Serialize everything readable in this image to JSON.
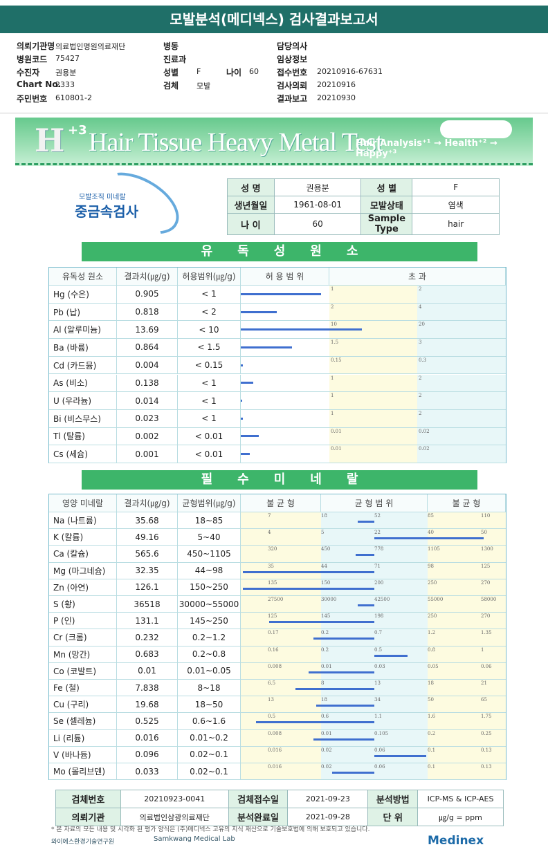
{
  "header": {
    "title": "모발분석(메디넥스) 검사결과보고서",
    "fields": [
      {
        "label": "의뢰기관명",
        "value": "의료법인명원의료재단"
      },
      {
        "label": "병원코드",
        "value": "75427"
      },
      {
        "label": "수진자",
        "value": "권용분"
      },
      {
        "label": "Chart No.",
        "value": "2333"
      },
      {
        "label": "주민번호",
        "value": "610801-2"
      },
      {
        "label": "병동",
        "value": ""
      },
      {
        "label": "진료과",
        "value": ""
      },
      {
        "label": "성별",
        "value": "F"
      },
      {
        "label": "나이",
        "value": "60"
      },
      {
        "label": "검체",
        "value": "모발"
      },
      {
        "label": "담당의사",
        "value": ""
      },
      {
        "label": "임상정보",
        "value": ""
      },
      {
        "label": "접수번호",
        "value": "20210916-67631"
      },
      {
        "label": "검사의뢰",
        "value": "20210916"
      },
      {
        "label": "결과보고",
        "value": "20210930"
      }
    ]
  },
  "banner": {
    "h": "H",
    "sup": "+3",
    "title": "Hair Tissue Heavy Metal Test",
    "subtitle": "Hair Analysis⁺¹ → Health⁺² → Happy⁺³"
  },
  "logo": {
    "small": "모발조직 미네랄",
    "big": "중금속검사"
  },
  "patient": {
    "rows": [
      [
        {
          "k": "성      명"
        },
        {
          "v": "권용분"
        },
        {
          "k": "성      별"
        },
        {
          "v": "F"
        }
      ],
      [
        {
          "k": "생년월일"
        },
        {
          "v": "1961-08-01"
        },
        {
          "k": "모발상태"
        },
        {
          "v": "염색"
        }
      ],
      [
        {
          "k": "나      이"
        },
        {
          "v": "60"
        },
        {
          "k": "Sample Type"
        },
        {
          "v": "hair"
        }
      ]
    ]
  },
  "toxic": {
    "section_title": "유독성원소",
    "headers": [
      "유독성 원소",
      "결과치(㎍/g)",
      "허용범위(㎍/g)",
      "허 용 범 위",
      "초          과"
    ],
    "rows": [
      {
        "name": "Hg (수은)",
        "value": "0.905",
        "ref": "< 1",
        "t1": "1",
        "t2": "2",
        "fill": 0.905
      },
      {
        "name": "Pb (납)",
        "value": "0.818",
        "ref": "< 2",
        "t1": "2",
        "t2": "4",
        "fill": 0.409
      },
      {
        "name": "Al (알루미늄)",
        "value": "13.69",
        "ref": "< 10",
        "t1": "10",
        "t2": "20",
        "fill": 1.369
      },
      {
        "name": "Ba (바륨)",
        "value": "0.864",
        "ref": "< 1.5",
        "t1": "1.5",
        "t2": "3",
        "fill": 0.576
      },
      {
        "name": "Cd (카드뮴)",
        "value": "0.004",
        "ref": "< 0.15",
        "t1": "0.15",
        "t2": "0.3",
        "fill": 0.027
      },
      {
        "name": "As (비소)",
        "value": "0.138",
        "ref": "< 1",
        "t1": "1",
        "t2": "2",
        "fill": 0.138
      },
      {
        "name": "U (우라늄)",
        "value": "0.014",
        "ref": "< 1",
        "t1": "1",
        "t2": "2",
        "fill": 0.014
      },
      {
        "name": "Bi (비스무스)",
        "value": "0.023",
        "ref": "< 1",
        "t1": "1",
        "t2": "2",
        "fill": 0.023
      },
      {
        "name": "Tl (탈륨)",
        "value": "0.002",
        "ref": "< 0.01",
        "t1": "0.01",
        "t2": "0.02",
        "fill": 0.2
      },
      {
        "name": "Cs (세슘)",
        "value": "0.001",
        "ref": "< 0.01",
        "t1": "0.01",
        "t2": "0.02",
        "fill": 0.1
      }
    ]
  },
  "essential": {
    "section_title": "필수미네랄",
    "headers": [
      "영양 미네랄",
      "결과치(㎍/g)",
      "균형범위(㎍/g)",
      "불 균 형",
      "균 형 범 위",
      "불 균 형"
    ],
    "rows": [
      {
        "name": "Na (나트륨)",
        "value": "35.68",
        "ref": "18~85",
        "ticks": [
          "7",
          "18",
          "52",
          "85",
          "110"
        ],
        "level": 0.44
      },
      {
        "name": "K (칼륨)",
        "value": "49.16",
        "ref": "5~40",
        "ticks": [
          "4",
          "5",
          "22",
          "40",
          "50"
        ],
        "level": 0.92
      },
      {
        "name": "Ca (칼슘)",
        "value": "565.6",
        "ref": "450~1105",
        "ticks": [
          "320",
          "450",
          "778",
          "1105",
          "1300"
        ],
        "level": 0.43
      },
      {
        "name": "Mg (마그네슘)",
        "value": "32.35",
        "ref": "44~98",
        "ticks": [
          "35",
          "44",
          "71",
          "98",
          "125"
        ],
        "level": 0.0
      },
      {
        "name": "Zn (아연)",
        "value": "126.1",
        "ref": "150~250",
        "ticks": [
          "135",
          "150",
          "200",
          "250",
          "270"
        ],
        "level": 0.0
      },
      {
        "name": "S (황)",
        "value": "36518",
        "ref": "30000~55000",
        "ticks": [
          "27500",
          "30000",
          "42500",
          "55000",
          "58000"
        ],
        "level": 0.44
      },
      {
        "name": "P (인)",
        "value": "131.1",
        "ref": "145~250",
        "ticks": [
          "125",
          "145",
          "198",
          "250",
          "270"
        ],
        "level": 0.1
      },
      {
        "name": "Cr (크롬)",
        "value": "0.232",
        "ref": "0.2~1.2",
        "ticks": [
          "0.17",
          "0.2",
          "0.7",
          "1.2",
          "1.35"
        ],
        "level": 0.27
      },
      {
        "name": "Mn (망간)",
        "value": "0.683",
        "ref": "0.2~0.8",
        "ticks": [
          "0.16",
          "0.2",
          "0.5",
          "0.8",
          "1"
        ],
        "level": 0.63
      },
      {
        "name": "Co (코발트)",
        "value": "0.01",
        "ref": "0.01~0.05",
        "ticks": [
          "0.008",
          "0.01",
          "0.03",
          "0.05",
          "0.06"
        ],
        "level": 0.25
      },
      {
        "name": "Fe (철)",
        "value": "7.838",
        "ref": "8~18",
        "ticks": [
          "6.5",
          "8",
          "13",
          "18",
          "21"
        ],
        "level": 0.2
      },
      {
        "name": "Cu (구리)",
        "value": "19.68",
        "ref": "18~50",
        "ticks": [
          "13",
          "18",
          "34",
          "50",
          "65"
        ],
        "level": 0.28
      },
      {
        "name": "Se (셀레늄)",
        "value": "0.525",
        "ref": "0.6~1.6",
        "ticks": [
          "0.5",
          "0.6",
          "1.1",
          "1.6",
          "1.75"
        ],
        "level": 0.05
      },
      {
        "name": "Li (리튬)",
        "value": "0.016",
        "ref": "0.01~0.2",
        "ticks": [
          "0.008",
          "0.01",
          "0.105",
          "0.2",
          "0.25"
        ],
        "level": 0.27
      },
      {
        "name": "V (바나듐)",
        "value": "0.096",
        "ref": "0.02~0.1",
        "ticks": [
          "0.016",
          "0.02",
          "0.06",
          "0.1",
          "0.13"
        ],
        "level": 0.7
      },
      {
        "name": "Mo (몰리브덴)",
        "value": "0.033",
        "ref": "0.02~0.1",
        "ticks": [
          "0.016",
          "0.02",
          "0.06",
          "0.1",
          "0.13"
        ],
        "level": 0.34
      }
    ]
  },
  "bottom": {
    "rows": [
      [
        {
          "k": "검체번호"
        },
        {
          "v": "20210923-0041"
        },
        {
          "k": "검체접수일"
        },
        {
          "v": "2021-09-23"
        },
        {
          "k": "분석방법"
        },
        {
          "v": "ICP-MS & ICP-AES"
        }
      ],
      [
        {
          "k": "의뢰기관"
        },
        {
          "v": "의료법인삼광의료재단"
        },
        {
          "k": "분석완료일"
        },
        {
          "v": "2021-09-28"
        },
        {
          "k": "단      위"
        },
        {
          "v": "㎍/g = ppm"
        }
      ]
    ]
  },
  "footnote": "* 본 자료의 모든 내용 및 시각화 된 평가 양식은 (주)메디넥스 고유의 지식 재산으로 기술보호법에 의해 보호되고 있습니다.",
  "footer": {
    "org1": "와이에스환경기술연구원",
    "org2": "Samkwang Medical Lab",
    "org3": "Medinex"
  },
  "colors": {
    "title_bg": "#1f6f68",
    "section_green": "#3db56a",
    "bar_blue": "#3f6fcf",
    "zone_yellow": "#fdfbe0",
    "zone_cyan": "#e8f7f8"
  }
}
